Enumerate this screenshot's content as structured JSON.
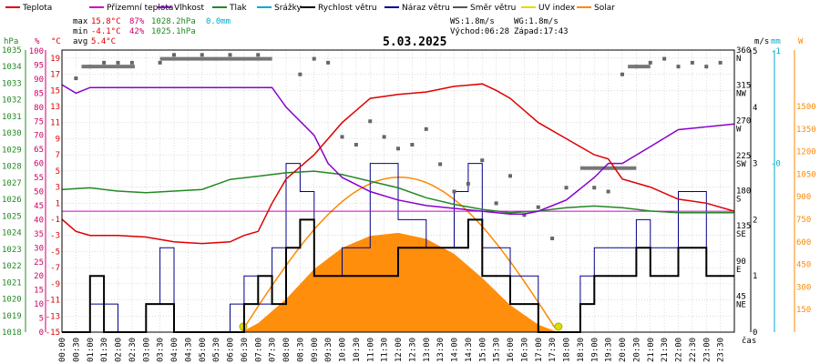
{
  "legend": [
    {
      "label": "Teplota",
      "color": "#dd0000"
    },
    {
      "label": "Přízemní teplota",
      "color": "#cc00cc"
    },
    {
      "label": "Vlhkost",
      "color": "#8800cc"
    },
    {
      "label": "Tlak",
      "color": "#228822"
    },
    {
      "label": "Srážky",
      "color": "#00aacc"
    },
    {
      "label": "Rychlost větru",
      "color": "#000000"
    },
    {
      "label": "Náraz větru",
      "color": "#000088"
    },
    {
      "label": "Směr větru",
      "color": "#555555"
    },
    {
      "label": "UV index",
      "color": "#dddd00"
    },
    {
      "label": "Solar",
      "color": "#ff8800"
    }
  ],
  "stats": {
    "max_label": "max",
    "max_temp": "15.8°C",
    "max_hum": "87%",
    "max_press": "1028.2hPa",
    "rain": "0.0mm",
    "min_label": "min",
    "min_temp": "-4.1°C",
    "min_hum": "42%",
    "min_press": "1025.1hPa",
    "avg_label": "avg",
    "avg_temp": "5.4°C"
  },
  "wind_info": {
    "ws": "WS:1.8m/s",
    "wg": "WG:1.8m/s",
    "sunrise": "Východ:06:28",
    "sunset": "Západ:17:43"
  },
  "units": {
    "hpa": "hPa",
    "pct": "%",
    "degc": "°C",
    "ms": "m/s",
    "mm": "mm",
    "w": "W",
    "time": "čas"
  },
  "colors": {
    "temp": "#dd0000",
    "hum": "#8800cc",
    "press": "#228822",
    "wind": "#000000",
    "gust": "#000088",
    "dir": "#666666",
    "solar": "#ff8800",
    "rain": "#00aacc",
    "uv": "#dddd00",
    "ground": "#cc00cc",
    "frame": "#000000",
    "grid": "#c8c8c8"
  },
  "chart_data": {
    "type": "line",
    "title": "5.03.2025",
    "x_ticks": [
      "00:00",
      "00:30",
      "01:00",
      "01:30",
      "02:00",
      "02:30",
      "03:00",
      "03:30",
      "04:00",
      "04:30",
      "05:00",
      "05:30",
      "06:00",
      "06:30",
      "07:00",
      "07:30",
      "08:00",
      "08:30",
      "09:00",
      "09:30",
      "10:00",
      "10:30",
      "11:00",
      "11:30",
      "12:00",
      "12:30",
      "13:00",
      "13:30",
      "14:00",
      "14:30",
      "15:00",
      "15:30",
      "16:00",
      "16:30",
      "17:00",
      "17:30",
      "18:00",
      "18:30",
      "19:00",
      "19:30",
      "20:00",
      "20:30",
      "21:00",
      "21:30",
      "22:00",
      "22:30",
      "23:00",
      "23:30"
    ],
    "axes": {
      "pressure_hpa": {
        "ticks": [
          1035,
          1034,
          1033,
          1032,
          1031,
          1030,
          1029,
          1028,
          1027,
          1026,
          1025,
          1024,
          1023,
          1022,
          1021,
          1020,
          1019,
          1018
        ],
        "range": [
          1018,
          1035
        ],
        "color": "#228822"
      },
      "humidity_pct": {
        "ticks": [
          100,
          95,
          90,
          85,
          80,
          75,
          70,
          65,
          60,
          55,
          50,
          45,
          40,
          35,
          30,
          25,
          20,
          15,
          10,
          5,
          0
        ],
        "range": [
          0,
          100
        ],
        "color": "#cc0066"
      },
      "temperature_c": {
        "ticks": [
          19,
          17,
          15,
          13,
          11,
          9,
          7,
          5,
          3,
          1,
          -1,
          -3,
          -5,
          -7,
          -9,
          -11,
          -13,
          -15
        ],
        "range": [
          -15,
          20
        ],
        "color": "#dd0000"
      },
      "wind_dir": {
        "ticks": [
          "360",
          "N",
          "315",
          "NW",
          "270",
          "W",
          "225",
          "SW",
          "180",
          "S",
          "135",
          "SE",
          "90",
          "E",
          "45",
          "NE"
        ],
        "range": [
          0,
          360
        ]
      },
      "wind_ms": {
        "ticks": [
          "5",
          "4",
          "3",
          "2",
          "1",
          "0"
        ],
        "range": [
          0,
          5
        ]
      },
      "rain_mm": {
        "ticks": [
          "-1",
          "-0"
        ]
      },
      "solar_w": {
        "ticks": [
          "1500",
          "1350",
          "1200",
          "1050",
          "900",
          "750",
          "600",
          "450",
          "300",
          "150"
        ],
        "range": [
          0,
          1875
        ]
      }
    },
    "zero_line_temp": 0,
    "series": [
      {
        "name": "Teplota",
        "unit": "°C",
        "x": [
          0,
          0.5,
          1,
          2,
          3,
          4,
          5,
          6,
          6.5,
          7,
          7.5,
          8,
          9,
          10,
          11,
          12,
          13,
          14,
          15,
          15.5,
          16,
          17,
          18,
          19,
          19.5,
          20,
          21,
          22,
          23,
          24
        ],
        "values": [
          -1,
          -2.5,
          -3,
          -3,
          -3.2,
          -3.8,
          -4,
          -3.8,
          -3,
          -2.5,
          1,
          4,
          7,
          11,
          14,
          14.5,
          14.8,
          15.5,
          15.8,
          15,
          14,
          11,
          9,
          7,
          6.5,
          4,
          3,
          1.5,
          1,
          0
        ]
      },
      {
        "name": "Vlhkost",
        "unit": "%",
        "x": [
          0,
          0.5,
          1,
          2,
          3,
          4,
          5,
          6,
          7,
          7.5,
          8,
          9,
          9.5,
          10,
          11,
          12,
          13,
          14,
          15,
          16,
          16.5,
          17,
          18,
          19,
          19.5,
          20,
          21,
          22,
          23,
          24
        ],
        "values": [
          88,
          85,
          87,
          87,
          87,
          87,
          87,
          87,
          87,
          87,
          80,
          70,
          60,
          55,
          50,
          47,
          45,
          44,
          43,
          42,
          42,
          43,
          47,
          55,
          60,
          60,
          66,
          72,
          73,
          74
        ]
      },
      {
        "name": "Tlak",
        "unit": "hPa",
        "x": [
          0,
          1,
          2,
          3,
          4,
          5,
          6,
          7,
          8,
          9,
          10,
          11,
          12,
          13,
          14,
          15,
          15.5,
          16,
          17,
          18,
          19,
          20,
          21,
          22,
          23,
          24
        ],
        "values": [
          1026.6,
          1026.7,
          1026.5,
          1026.4,
          1026.5,
          1026.6,
          1027.2,
          1027.4,
          1027.6,
          1027.7,
          1027.5,
          1027.1,
          1026.7,
          1026.1,
          1025.7,
          1025.4,
          1025.3,
          1025.2,
          1025.3,
          1025.5,
          1025.6,
          1025.5,
          1025.3,
          1025.2,
          1025.2,
          1025.2
        ]
      },
      {
        "name": "Přízemní teplota",
        "unit": "°C",
        "x": [
          0,
          24
        ],
        "values": [
          0,
          0
        ]
      },
      {
        "name": "Rychlost větru",
        "unit": "m/s",
        "x": [
          0,
          1,
          1.5,
          2,
          2.5,
          3,
          4,
          5,
          6,
          6.5,
          7,
          7.5,
          8,
          8.5,
          9,
          10,
          11,
          12,
          13,
          14,
          14.5,
          15,
          16,
          17,
          18,
          18.5,
          19,
          20,
          20.5,
          21,
          22,
          23,
          24
        ],
        "values": [
          0,
          1,
          0,
          0,
          0,
          0.5,
          0,
          0,
          0,
          0.5,
          1,
          0.5,
          1.5,
          2,
          1,
          1,
          1,
          1.5,
          1.5,
          1.5,
          2,
          1,
          0.5,
          0,
          0,
          0.5,
          1,
          1,
          1.5,
          1,
          1.5,
          1,
          1
        ]
      },
      {
        "name": "Náraz větru",
        "unit": "m/s",
        "x": [
          0,
          1,
          2,
          3,
          3.5,
          4,
          5,
          6,
          6.5,
          7,
          7.5,
          8,
          8.5,
          9,
          10,
          11,
          12,
          13,
          14,
          14.5,
          15,
          16,
          17,
          18,
          18.5,
          19,
          20,
          20.5,
          21,
          22,
          23,
          24
        ],
        "values": [
          0,
          0.5,
          0,
          0.5,
          1.5,
          0,
          0,
          0.5,
          1,
          0.5,
          1.5,
          3,
          2.5,
          1,
          1.5,
          3,
          2,
          1.5,
          2.5,
          3,
          1.5,
          1,
          0,
          0,
          1,
          1.5,
          1.5,
          2,
          1.5,
          2.5,
          1,
          1.5
        ]
      },
      {
        "name": "Solar",
        "unit": "W",
        "x": [
          6.4,
          7,
          8,
          9,
          10,
          11,
          12,
          13,
          14,
          15,
          16,
          17,
          17.7
        ],
        "values": [
          0,
          60,
          220,
          420,
          560,
          640,
          660,
          620,
          520,
          360,
          180,
          50,
          0
        ]
      },
      {
        "name": "Směr větru",
        "unit": "°",
        "x": [
          0.5,
          1,
          1.5,
          2,
          2.5,
          3.5,
          4,
          5,
          6,
          7,
          8.5,
          9,
          9.5,
          10,
          10.5,
          11,
          11.5,
          12,
          12.5,
          13,
          13.5,
          14,
          14.5,
          15,
          15.5,
          16,
          16.5,
          17,
          17.5,
          18,
          19,
          19.5,
          20,
          20.5,
          21,
          21.5,
          22,
          22.5,
          23,
          23.5
        ],
        "values": [
          325,
          340,
          345,
          345,
          345,
          345,
          355,
          355,
          355,
          355,
          330,
          350,
          345,
          250,
          240,
          270,
          250,
          235,
          240,
          260,
          215,
          180,
          190,
          220,
          165,
          200,
          150,
          160,
          120,
          185,
          185,
          180,
          330,
          340,
          345,
          350,
          340,
          345,
          340,
          345
        ]
      }
    ]
  }
}
